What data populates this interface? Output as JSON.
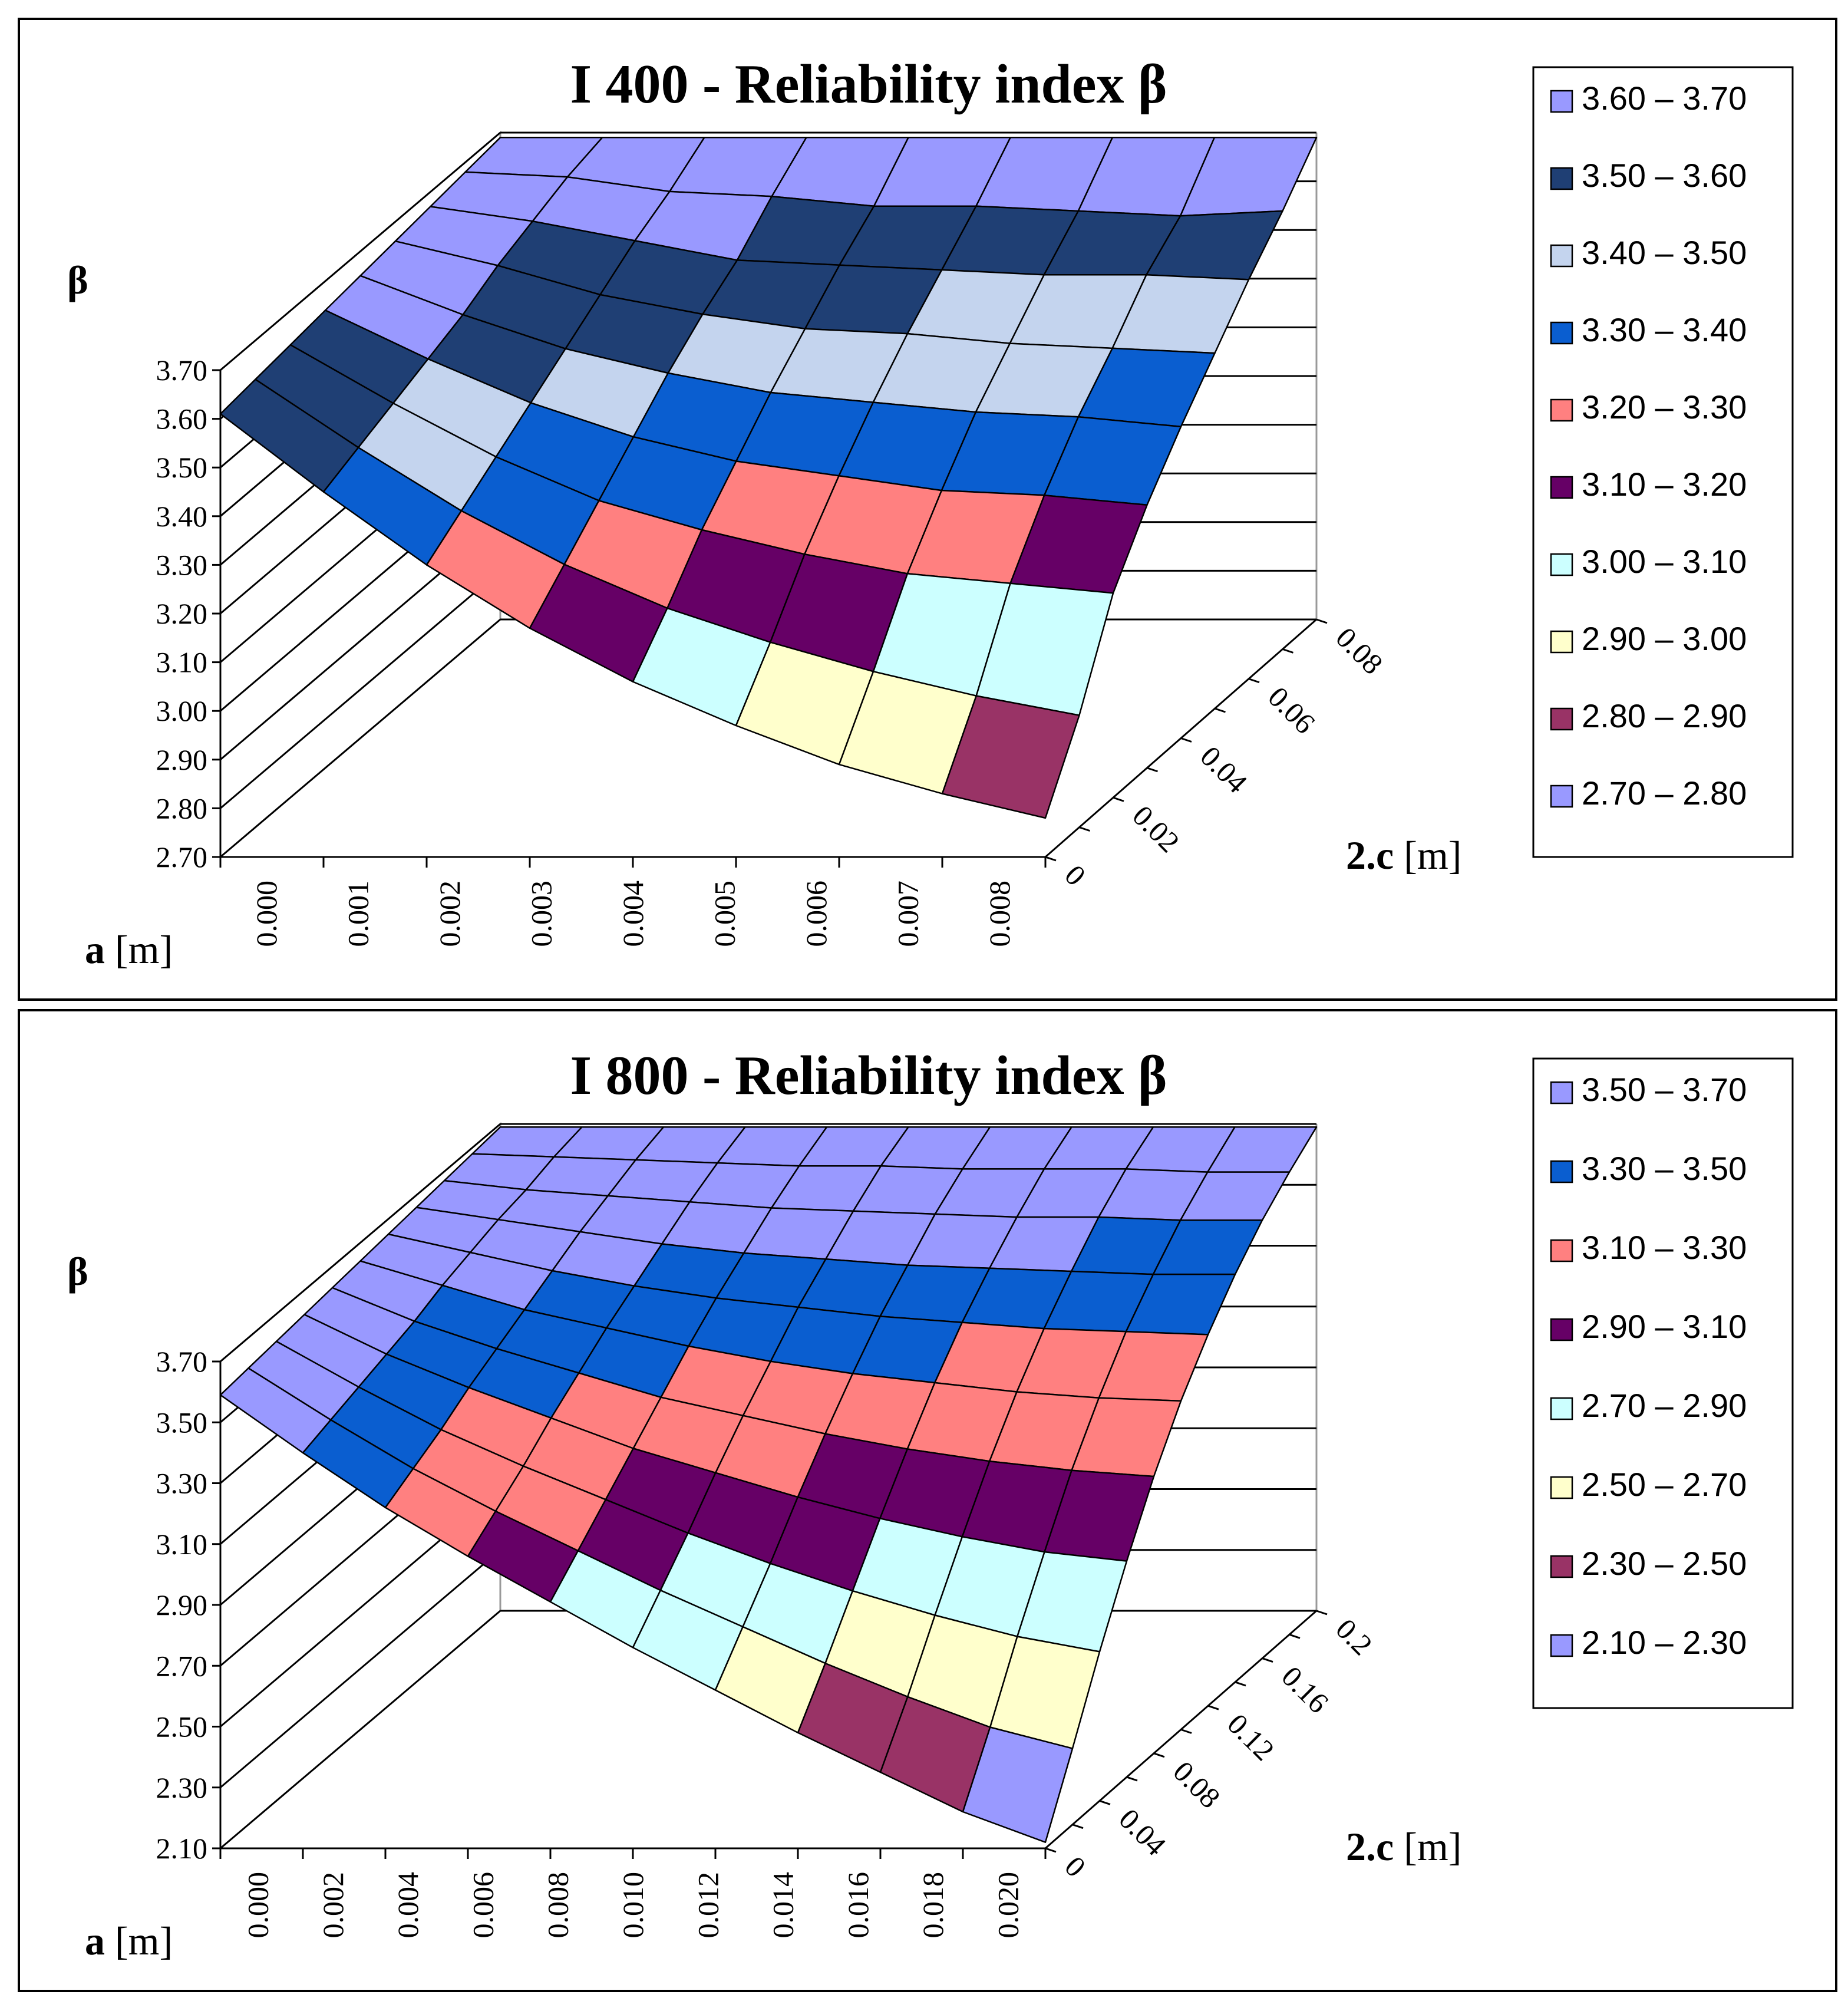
{
  "chart_data": [
    {
      "type": "surface",
      "title": "I 400 - Reliability index β",
      "zlabel": "β",
      "xlabel_bold": "a",
      "xlabel_unit": " [m]",
      "ylabel_bold": "2.c",
      "ylabel_unit": " [m]",
      "x": [
        "0.000",
        "0.001",
        "0.002",
        "0.003",
        "0.004",
        "0.005",
        "0.006",
        "0.007",
        "0.008"
      ],
      "y": [
        "0",
        "0.02",
        "0.04",
        "0.06",
        "0.08"
      ],
      "y_count": 9,
      "z_ticks": [
        "2.70",
        "2.80",
        "2.90",
        "3.00",
        "3.10",
        "3.20",
        "3.30",
        "3.40",
        "3.50",
        "3.60",
        "3.70"
      ],
      "zlim": [
        2.7,
        3.7
      ],
      "legend": [
        {
          "label": "3.60 – 3.70",
          "lo": 3.6,
          "color": "#9999ff"
        },
        {
          "label": "3.50 – 3.60",
          "lo": 3.5,
          "color": "#1f3f74"
        },
        {
          "label": "3.40 – 3.50",
          "lo": 3.4,
          "color": "#c4d4ee"
        },
        {
          "label": "3.30 – 3.40",
          "lo": 3.3,
          "color": "#0a5ed0"
        },
        {
          "label": "3.20 – 3.30",
          "lo": 3.2,
          "color": "#ff8080"
        },
        {
          "label": "3.10 – 3.20",
          "lo": 3.1,
          "color": "#660066"
        },
        {
          "label": "3.00 – 3.10",
          "lo": 3.0,
          "color": "#ccffff"
        },
        {
          "label": "2.90 – 3.00",
          "lo": 2.9,
          "color": "#ffffcc"
        },
        {
          "label": "2.80 – 2.90",
          "lo": 2.8,
          "color": "#993366"
        },
        {
          "label": "2.70 – 2.80",
          "lo": 2.7,
          "color": "#9999ff"
        }
      ],
      "values": [
        [
          3.69,
          3.69,
          3.69,
          3.69,
          3.69,
          3.69,
          3.69,
          3.69,
          3.69
        ],
        [
          3.68,
          3.67,
          3.64,
          3.63,
          3.61,
          3.61,
          3.6,
          3.59,
          3.6
        ],
        [
          3.67,
          3.64,
          3.6,
          3.56,
          3.55,
          3.54,
          3.53,
          3.53,
          3.52
        ],
        [
          3.66,
          3.61,
          3.55,
          3.51,
          3.48,
          3.47,
          3.45,
          3.44,
          3.43
        ],
        [
          3.65,
          3.57,
          3.5,
          3.45,
          3.41,
          3.39,
          3.37,
          3.36,
          3.34
        ],
        [
          3.64,
          3.54,
          3.45,
          3.38,
          3.33,
          3.3,
          3.27,
          3.26,
          3.24
        ],
        [
          3.63,
          3.51,
          3.4,
          3.31,
          3.25,
          3.2,
          3.16,
          3.14,
          3.12
        ],
        [
          3.62,
          3.48,
          3.35,
          3.24,
          3.15,
          3.08,
          3.02,
          2.97,
          2.93
        ],
        [
          3.61,
          3.45,
          3.3,
          3.17,
          3.06,
          2.97,
          2.89,
          2.83,
          2.78
        ]
      ]
    },
    {
      "type": "surface",
      "title": "I 800 - Reliability index β",
      "zlabel": "β",
      "xlabel_bold": "a",
      "xlabel_unit": " [m]",
      "ylabel_bold": "2.c",
      "ylabel_unit": " [m]",
      "x": [
        "0.000",
        "0.002",
        "0.004",
        "0.006",
        "0.008",
        "0.010",
        "0.012",
        "0.014",
        "0.016",
        "0.018",
        "0.020"
      ],
      "y": [
        "0",
        "0.04",
        "0.08",
        "0.12",
        "0.16",
        "0.2"
      ],
      "y_count": 11,
      "z_ticks": [
        "2.10",
        "2.30",
        "2.50",
        "2.70",
        "2.90",
        "3.10",
        "3.30",
        "3.50",
        "3.70"
      ],
      "zlim": [
        2.1,
        3.7
      ],
      "legend": [
        {
          "label": "3.50 – 3.70",
          "lo": 3.5,
          "color": "#9999ff"
        },
        {
          "label": "3.30 – 3.50",
          "lo": 3.3,
          "color": "#0a5ed0"
        },
        {
          "label": "3.10 – 3.30",
          "lo": 3.1,
          "color": "#ff8080"
        },
        {
          "label": "2.90 – 3.10",
          "lo": 2.9,
          "color": "#660066"
        },
        {
          "label": "2.70 – 2.90",
          "lo": 2.7,
          "color": "#ccffff"
        },
        {
          "label": "2.50 – 2.70",
          "lo": 2.5,
          "color": "#ffffcc"
        },
        {
          "label": "2.30 – 2.50",
          "lo": 2.3,
          "color": "#993366"
        },
        {
          "label": "2.10 – 2.30",
          "lo": 2.1,
          "color": "#9999ff"
        }
      ],
      "values": [
        [
          3.69,
          3.69,
          3.69,
          3.69,
          3.69,
          3.69,
          3.69,
          3.69,
          3.69,
          3.69,
          3.69
        ],
        [
          3.68,
          3.67,
          3.66,
          3.65,
          3.64,
          3.64,
          3.63,
          3.63,
          3.63,
          3.62,
          3.62
        ],
        [
          3.67,
          3.64,
          3.62,
          3.6,
          3.58,
          3.57,
          3.56,
          3.55,
          3.55,
          3.54,
          3.54
        ],
        [
          3.66,
          3.62,
          3.58,
          3.54,
          3.51,
          3.49,
          3.47,
          3.46,
          3.45,
          3.44,
          3.44
        ],
        [
          3.65,
          3.59,
          3.53,
          3.48,
          3.44,
          3.41,
          3.38,
          3.36,
          3.34,
          3.33,
          3.32
        ],
        [
          3.64,
          3.56,
          3.48,
          3.42,
          3.36,
          3.31,
          3.27,
          3.24,
          3.21,
          3.19,
          3.18
        ],
        [
          3.63,
          3.52,
          3.43,
          3.35,
          3.27,
          3.21,
          3.15,
          3.1,
          3.06,
          3.03,
          3.01
        ],
        [
          3.62,
          3.49,
          3.38,
          3.28,
          3.18,
          3.1,
          3.02,
          2.95,
          2.89,
          2.84,
          2.81
        ],
        [
          3.61,
          3.46,
          3.32,
          3.2,
          3.09,
          2.98,
          2.88,
          2.79,
          2.71,
          2.64,
          2.59
        ],
        [
          3.6,
          3.43,
          3.27,
          3.13,
          3.0,
          2.87,
          2.75,
          2.63,
          2.52,
          2.42,
          2.35
        ],
        [
          3.59,
          3.4,
          3.22,
          3.06,
          2.91,
          2.76,
          2.62,
          2.48,
          2.35,
          2.22,
          2.12
        ]
      ]
    }
  ]
}
